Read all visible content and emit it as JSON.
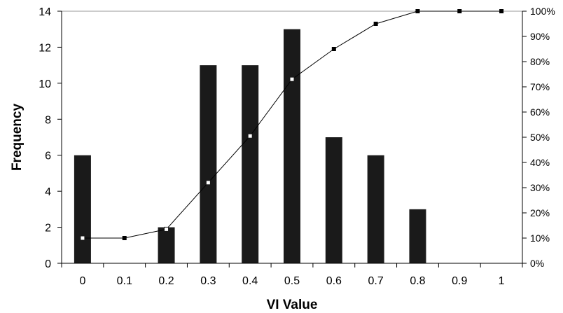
{
  "chart_data": {
    "type": "bar",
    "categories": [
      "0",
      "0.1",
      "0.2",
      "0.3",
      "0.4",
      "0.5",
      "0.6",
      "0.7",
      "0.8",
      "0.9",
      "1"
    ],
    "series": [
      {
        "type": "bar",
        "axis": "left",
        "values": [
          6,
          0,
          2,
          11,
          11,
          13,
          7,
          6,
          3,
          0,
          0
        ],
        "color": "#1a1a1a"
      },
      {
        "type": "line",
        "axis": "right",
        "values": [
          0.1,
          0.1,
          0.135,
          0.32,
          0.505,
          0.73,
          0.85,
          0.95,
          1.0,
          1.0,
          1.0
        ],
        "color": "#000000"
      }
    ],
    "xlabel": "VI Value",
    "ylabel": "Frequency",
    "ylim": [
      0,
      14
    ],
    "yticks": [
      "0",
      "2",
      "4",
      "6",
      "8",
      "10",
      "12",
      "14"
    ],
    "y2lim": [
      0,
      1
    ],
    "y2ticks": [
      "0%",
      "10%",
      "20%",
      "30%",
      "40%",
      "50%",
      "60%",
      "70%",
      "80%",
      "90%",
      "100%"
    ],
    "grid": false,
    "legend": "none"
  }
}
